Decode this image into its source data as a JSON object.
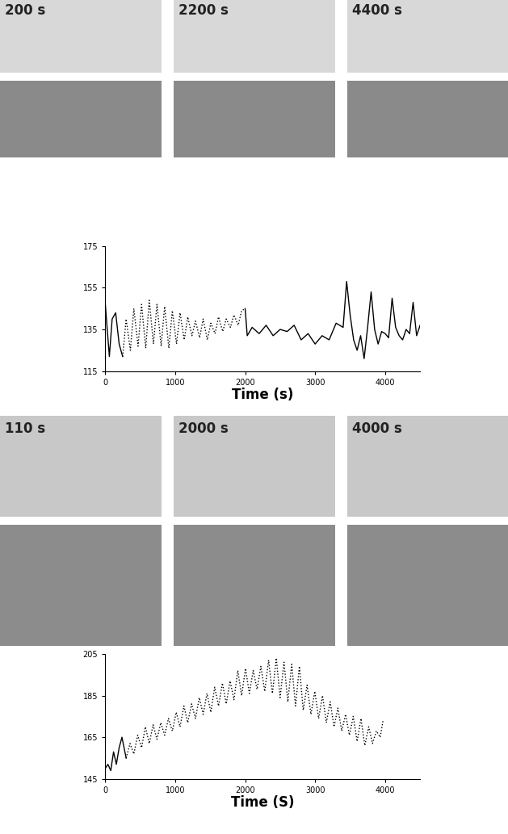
{
  "image_labels": [
    [
      "200 s",
      "2200 s",
      "4400 s"
    ],
    [
      "110 s",
      "2000 s",
      "4000 s"
    ]
  ],
  "chart_data": [
    {
      "type": "line",
      "x_label": "Time (s)",
      "xlim": [
        0,
        4500
      ],
      "xticks": [
        0,
        1000,
        2000,
        3000,
        4000
      ],
      "ylim": [
        115,
        175
      ],
      "yticks": [
        115,
        135,
        155,
        175
      ],
      "grid": false,
      "series": [
        {
          "color": "#000000",
          "line_style": "solid",
          "x": [
            0,
            30,
            60,
            100,
            150,
            200,
            250
          ],
          "values": [
            148,
            135,
            122,
            140,
            143,
            128,
            122
          ]
        },
        {
          "color": "#000000",
          "line_style": "dotted",
          "x": [
            250,
            300,
            360,
            410,
            470,
            520,
            580,
            630,
            690,
            740,
            800,
            850,
            910,
            960,
            1020,
            1070,
            1130,
            1180,
            1240,
            1290,
            1350,
            1400,
            1460,
            1510,
            1570,
            1620,
            1680,
            1730,
            1790,
            1840,
            1900,
            1950,
            2000
          ],
          "values": [
            122,
            140,
            125,
            145,
            127,
            147,
            126,
            149,
            128,
            147,
            127,
            146,
            126,
            144,
            128,
            143,
            130,
            141,
            132,
            139,
            131,
            140,
            130,
            138,
            133,
            141,
            134,
            140,
            136,
            142,
            137,
            144,
            145
          ]
        },
        {
          "color": "#000000",
          "line_style": "solid",
          "x": [
            2000,
            2030,
            2100,
            2200,
            2300,
            2400,
            2500,
            2600,
            2700,
            2800,
            2900,
            3000,
            3100,
            3200,
            3300,
            3400,
            3450,
            3500,
            3550,
            3600,
            3650,
            3700,
            3750,
            3800,
            3850,
            3900,
            3950,
            4000,
            4050,
            4100,
            4150,
            4200,
            4250,
            4300,
            4350,
            4400,
            4450,
            4500
          ],
          "values": [
            145,
            132,
            136,
            133,
            137,
            132,
            135,
            134,
            137,
            130,
            133,
            128,
            132,
            130,
            138,
            136,
            158,
            142,
            130,
            125,
            132,
            121,
            136,
            153,
            135,
            128,
            134,
            133,
            131,
            150,
            136,
            132,
            130,
            135,
            133,
            148,
            132,
            137
          ]
        }
      ]
    },
    {
      "type": "line",
      "x_label": "Time (S)",
      "xlim": [
        0,
        4500
      ],
      "xticks": [
        0,
        1000,
        2000,
        3000,
        4000
      ],
      "ylim": [
        145,
        205
      ],
      "yticks": [
        145,
        165,
        185,
        205
      ],
      "grid": false,
      "series": [
        {
          "color": "#000000",
          "line_style": "solid",
          "x": [
            0,
            40,
            80,
            120,
            160,
            200,
            240,
            300
          ],
          "values": [
            150,
            152,
            149,
            158,
            152,
            160,
            165,
            155
          ]
        },
        {
          "color": "#000000",
          "line_style": "dotted",
          "x": [
            300,
            355,
            410,
            465,
            520,
            575,
            630,
            685,
            740,
            795,
            850,
            905,
            960,
            1015,
            1070,
            1125,
            1180,
            1235,
            1290,
            1345,
            1400,
            1455,
            1510,
            1565,
            1620,
            1675,
            1730,
            1785,
            1840,
            1895,
            1950,
            2005,
            2060,
            2115,
            2170,
            2225,
            2280,
            2335,
            2390,
            2445,
            2500,
            2555,
            2610,
            2665,
            2720,
            2775,
            2830,
            2885,
            2940,
            2995,
            3050,
            3105,
            3160,
            3215,
            3270,
            3325,
            3380,
            3435,
            3490,
            3545,
            3600,
            3655,
            3710,
            3765,
            3820,
            3875,
            3930,
            3970
          ],
          "values": [
            155,
            162,
            157,
            166,
            160,
            170,
            162,
            171,
            164,
            172,
            166,
            174,
            168,
            177,
            170,
            180,
            172,
            181,
            174,
            184,
            176,
            186,
            177,
            189,
            180,
            191,
            181,
            192,
            183,
            197,
            185,
            198,
            186,
            197,
            188,
            199,
            187,
            202,
            186,
            203,
            184,
            201,
            182,
            200,
            180,
            199,
            178,
            190,
            176,
            187,
            174,
            185,
            172,
            182,
            170,
            179,
            168,
            176,
            166,
            175,
            163,
            174,
            161,
            170,
            162,
            168,
            165,
            173
          ]
        }
      ]
    }
  ]
}
